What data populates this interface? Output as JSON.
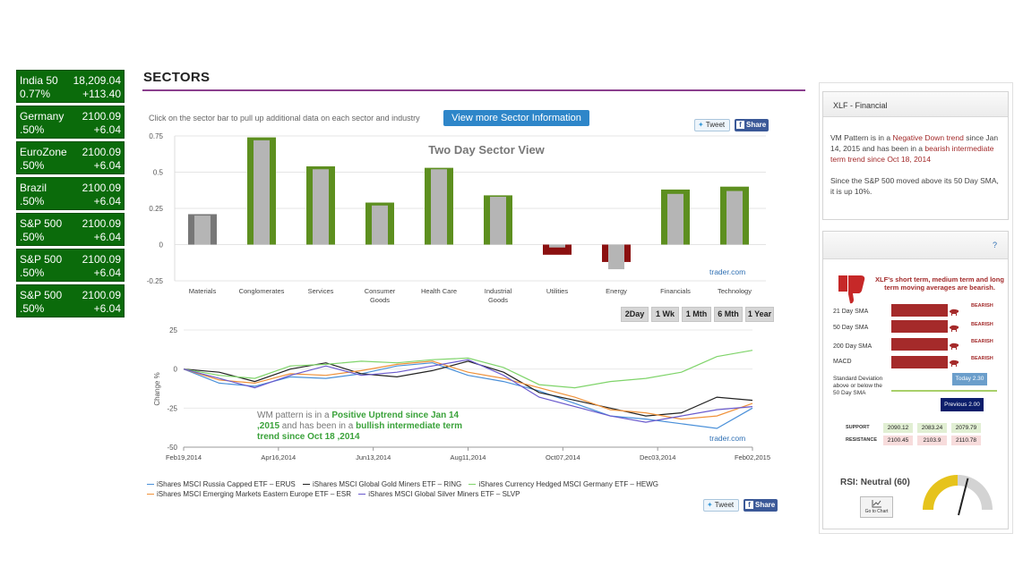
{
  "tickers": [
    {
      "name": "India 50",
      "value": "18,209.04",
      "pct": "0.77%",
      "change": "+113.40"
    },
    {
      "name": "Germany",
      "value": "2100.09",
      "pct": ".50%",
      "change": "+6.04"
    },
    {
      "name": "EuroZone",
      "value": "2100.09",
      "pct": ".50%",
      "change": "+6.04"
    },
    {
      "name": "Brazil",
      "value": "2100.09",
      "pct": ".50%",
      "change": "+6.04"
    },
    {
      "name": "S&P 500",
      "value": "2100.09",
      "pct": ".50%",
      "change": "+6.04"
    },
    {
      "name": "S&P 500",
      "value": "2100.09",
      "pct": ".50%",
      "change": "+6.04"
    },
    {
      "name": "S&P 500",
      "value": "2100.09",
      "pct": ".50%",
      "change": "+6.04"
    }
  ],
  "sectors": {
    "title": "SECTORS",
    "hint": "Click on the sector bar to pull up additional data on each sector and industry",
    "more_button": "View more Sector Information",
    "tweet": "Tweet",
    "share": "Share",
    "watermark": "trader.com",
    "ranges": [
      "2Day",
      "1 Wk",
      "1 Mth",
      "6 Mth",
      "1 Year"
    ]
  },
  "chart_data": [
    {
      "type": "bar",
      "title": "Two Day Sector View",
      "categories": [
        "Materials",
        "Conglomerates",
        "Services",
        "Consumer Goods",
        "Health Care",
        "Industrial Goods",
        "Utilities",
        "Energy",
        "Financials",
        "Technology"
      ],
      "series": [
        {
          "name": "",
          "values": [
            0.21,
            0.74,
            0.54,
            0.29,
            0.53,
            0.34,
            -0.07,
            -0.12,
            0.38,
            0.4
          ]
        },
        {
          "name": "",
          "values": [
            0.2,
            0.72,
            0.52,
            0.27,
            0.52,
            0.33,
            -0.02,
            -0.17,
            0.35,
            0.37
          ]
        }
      ],
      "yticks": [
        "0.75",
        "0.5",
        "0.25",
        "0",
        "-0.25"
      ],
      "ylim": [
        -0.25,
        0.75
      ],
      "grid": true
    },
    {
      "type": "line",
      "ylabel": "Change %",
      "xticks": [
        "Feb19,2014",
        "Apr16,2014",
        "Jun13,2014",
        "Aug11,2014",
        "Oct07,2014",
        "Dec03,2014",
        "Feb02,2015"
      ],
      "yticks": [
        "25",
        "0",
        "-25",
        "-50"
      ],
      "ylim": [
        -50,
        25
      ],
      "annotation": {
        "prefix": "WM  pattern is in a ",
        "trend1": "Positive Uptrend since Jan 14 ,2015",
        "mid": " and has been in a ",
        "trend2": "bullish intermediate term trend since Oct 18 ,2014"
      },
      "series": [
        {
          "name": "iShares MSCI Russia Capped ETF – ERUS",
          "color": "#4a90d9",
          "values": [
            0,
            -9,
            -11,
            -5,
            -6,
            -3,
            2,
            4,
            -4,
            -8,
            -14,
            -22,
            -30,
            -32,
            -35,
            -38,
            -25
          ]
        },
        {
          "name": "iShares MSCI Global Gold Miners ETF – RING",
          "color": "#222222",
          "values": [
            0,
            -2,
            -8,
            0,
            4,
            -3,
            -5,
            -1,
            5,
            -2,
            -15,
            -20,
            -25,
            -30,
            -28,
            -18,
            -20
          ]
        },
        {
          "name": "iShares Currency Hedged MSCI Germany ETF – HEWG",
          "color": "#7fd46a",
          "values": [
            0,
            -4,
            -6,
            2,
            3,
            5,
            4,
            6,
            7,
            1,
            -10,
            -12,
            -8,
            -6,
            -2,
            8,
            12
          ]
        },
        {
          "name": "iShares MSCI Emerging Markets Eastern Europe ETF – ESR",
          "color": "#f0923a",
          "values": [
            0,
            -7,
            -9,
            -3,
            -4,
            -1,
            3,
            5,
            -2,
            -6,
            -12,
            -18,
            -26,
            -28,
            -32,
            -30,
            -22
          ]
        },
        {
          "name": "iShares MSCI Global Silver Miners ETF – SLVP",
          "color": "#6a5acd",
          "values": [
            0,
            -6,
            -12,
            -4,
            2,
            -4,
            -2,
            2,
            6,
            -4,
            -18,
            -24,
            -30,
            -34,
            -30,
            -26,
            -24
          ]
        }
      ]
    }
  ],
  "panel1": {
    "title": "XLF - Financial",
    "p1_a": "VM Pattern is in a ",
    "p1_b": "Negative Down trend",
    "p1_c": " since Jan 14, 2015 and has been in a ",
    "p1_d": "bearish intermediate term trend",
    "p1_e": " since Oct 18, 2014",
    "p2": "Since the S&P 500 moved above its 50 Day SMA, it is up 10%."
  },
  "panel2": {
    "help": "?",
    "message": "XLF's short term, medium term and long term moving averages are bearish.",
    "indicators": [
      {
        "label": "21 Day SMA",
        "status": "BEARISH"
      },
      {
        "label": "50 Day SMA",
        "status": "BEARISH"
      },
      {
        "label": "200 Day SMA",
        "status": "BEARISH"
      },
      {
        "label": "MACD",
        "status": "BEARISH"
      }
    ],
    "std_label": "Standard Deviation above or below the 50 Day SMA",
    "today": "Today 2.30",
    "previous": "Previous 2.00",
    "support_label": "SUPPORT",
    "resistance_label": "RESISTANCE",
    "support": [
      "2090.12",
      "2083.24",
      "2079.79"
    ],
    "resistance": [
      "2100.45",
      "2103.9",
      "2110.78"
    ],
    "rsi": "RSI: Neutral (60)",
    "rsi_value": 60,
    "goto": "Go to Chart",
    "colors": {
      "bearish": "#a52a2a",
      "accent": "#8b3f8e",
      "button": "#2e86c9",
      "ticker": "#0b6b0b"
    }
  }
}
